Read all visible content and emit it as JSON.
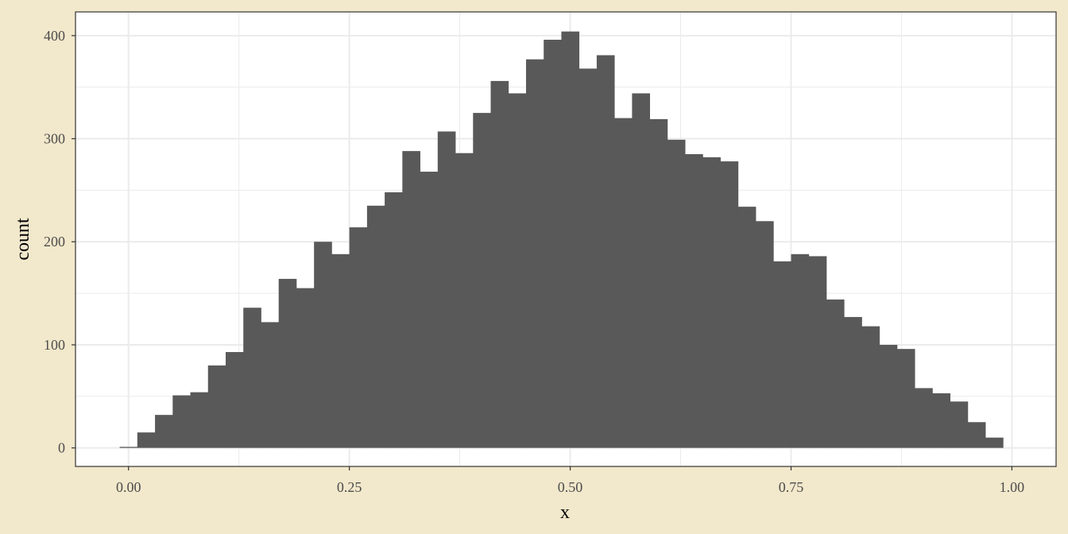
{
  "chart_data": {
    "type": "bar",
    "title": "",
    "xlabel": "x",
    "ylabel": "count",
    "xlim": [
      -0.06,
      1.05
    ],
    "ylim": [
      -18,
      423
    ],
    "xticks": [
      0.0,
      0.25,
      0.5,
      0.75,
      1.0
    ],
    "xtick_labels": [
      "0.00",
      "0.25",
      "0.50",
      "0.75",
      "1.00"
    ],
    "yticks": [
      0,
      100,
      200,
      300,
      400
    ],
    "ytick_labels": [
      "0",
      "100",
      "200",
      "300",
      "400"
    ],
    "grid": true,
    "bin_start": -0.01,
    "bin_width": 0.02,
    "counts": [
      1,
      15,
      32,
      51,
      54,
      80,
      93,
      136,
      122,
      164,
      155,
      200,
      188,
      214,
      235,
      248,
      288,
      268,
      307,
      286,
      325,
      356,
      344,
      377,
      396,
      404,
      368,
      381,
      320,
      344,
      319,
      299,
      285,
      282,
      278,
      234,
      220,
      181,
      188,
      186,
      144,
      127,
      118,
      100,
      96,
      58,
      53,
      45,
      25,
      10
    ],
    "colors": {
      "bar": "#595959",
      "panel_bg": "#ffffff",
      "page_bg": "#f2e8cb",
      "grid": "#ebebeb",
      "border": "#333333"
    }
  }
}
